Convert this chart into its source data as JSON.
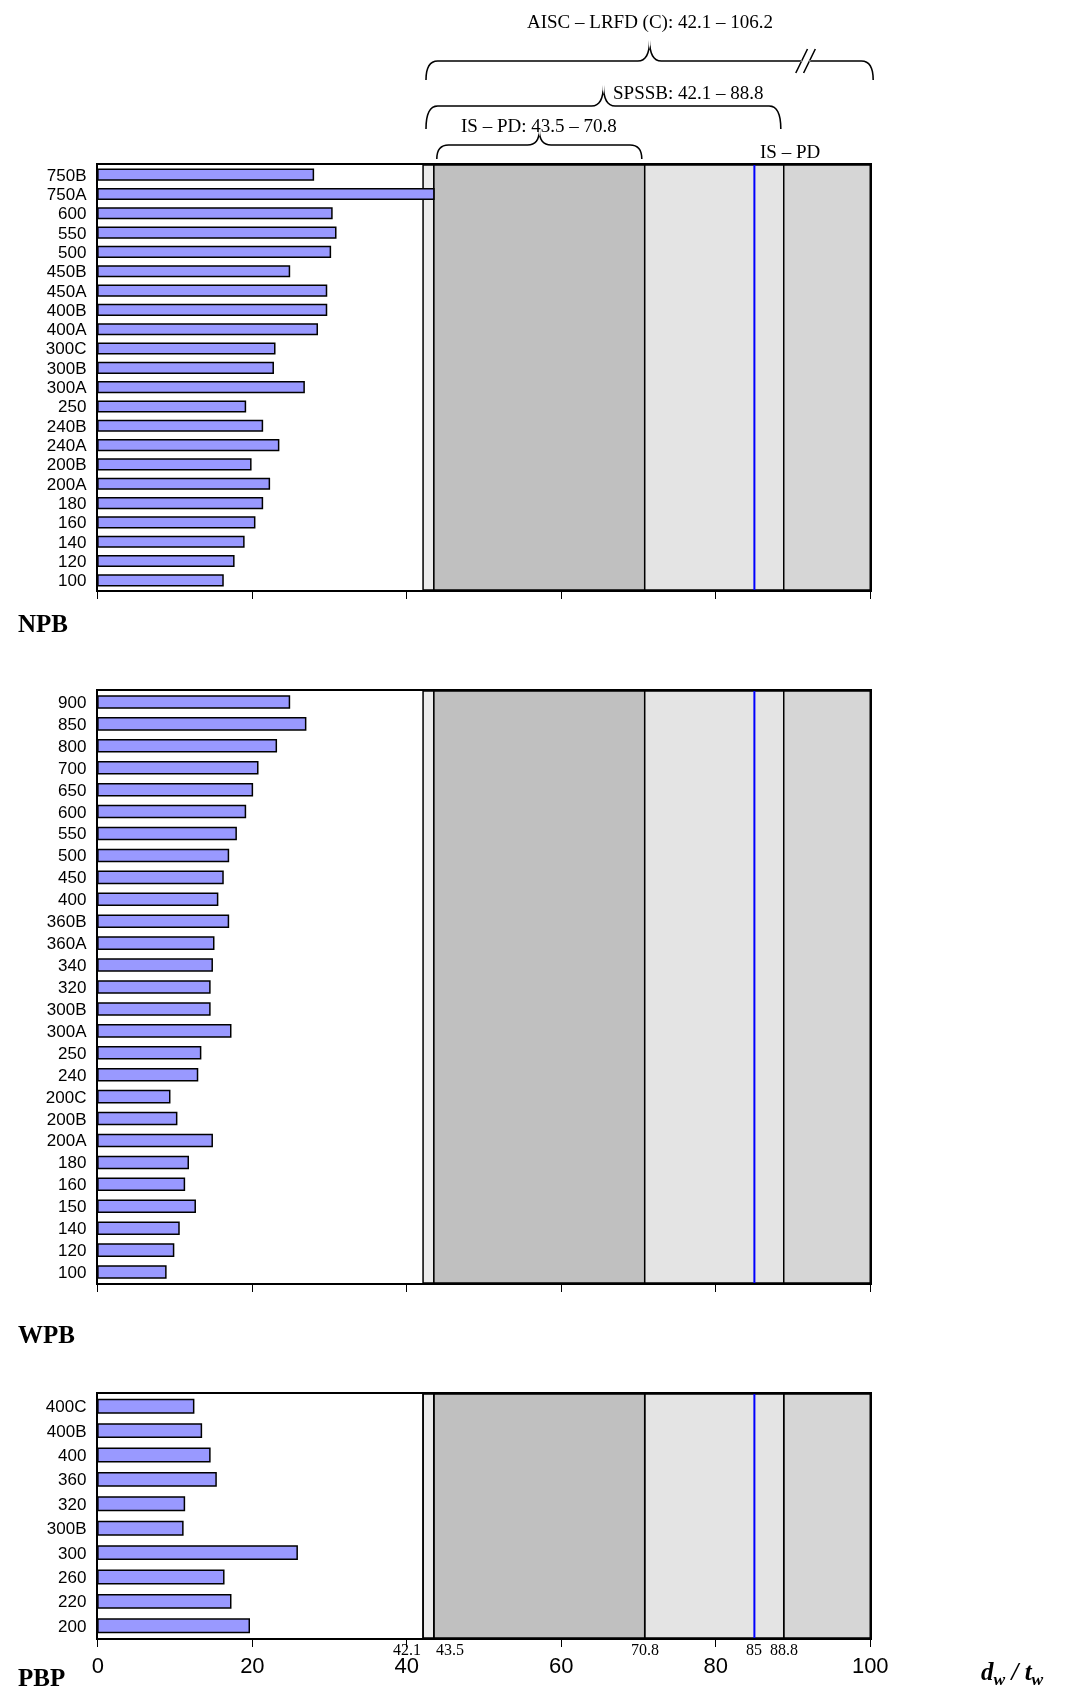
{
  "chart_data": [
    {
      "type": "bar",
      "orientation": "horizontal",
      "title": "NPB",
      "color": "#9999ff",
      "categories": [
        "750B",
        "750A",
        "600",
        "550",
        "500",
        "450B",
        "450A",
        "400B",
        "400A",
        "300C",
        "300B",
        "300A",
        "250",
        "240B",
        "240A",
        "200B",
        "200A",
        "180",
        "160",
        "140",
        "120",
        "100"
      ],
      "values": [
        27.9,
        43.5,
        30.3,
        30.8,
        30.1,
        24.8,
        29.6,
        29.6,
        28.4,
        22.9,
        22.7,
        26.7,
        19.1,
        21.3,
        23.4,
        19.8,
        22.2,
        21.3,
        20.3,
        18.9,
        17.6,
        16.2
      ],
      "xlim": [
        0,
        100
      ],
      "xticks": [
        0,
        20,
        40,
        60,
        80,
        100
      ],
      "tick_labels": "y",
      "bands": [
        {
          "axis": "x",
          "from": 42.1,
          "to": 43.5,
          "color": "#ececec"
        },
        {
          "axis": "x",
          "from": 43.5,
          "to": 70.8,
          "color": "#c0c0c0"
        },
        {
          "axis": "x",
          "from": 70.8,
          "to": 88.8,
          "color": "#e4e4e4"
        },
        {
          "axis": "x",
          "from": 88.8,
          "to": 100,
          "color": "#d6d6d6"
        }
      ],
      "ref_lines": [
        {
          "axis": "x",
          "value": 85,
          "label": "IS – PD",
          "color": "#0000ff"
        }
      ],
      "annotations": [
        "AISC – LRFD (C): 42.1 – 106.2",
        "SPSSB: 42.1 – 88.8",
        "IS – PD: 43.5 – 70.8"
      ]
    },
    {
      "type": "bar",
      "orientation": "horizontal",
      "title": "WPB",
      "color": "#9999ff",
      "categories": [
        "900",
        "850",
        "800",
        "700",
        "650",
        "600",
        "550",
        "500",
        "450",
        "400",
        "360B",
        "360A",
        "340",
        "320",
        "300B",
        "300A",
        "250",
        "240",
        "200C",
        "200B",
        "200A",
        "180",
        "160",
        "150",
        "140",
        "120",
        "100"
      ],
      "values": [
        24.8,
        26.9,
        23.1,
        20.7,
        20.0,
        19.1,
        17.9,
        16.9,
        16.2,
        15.5,
        16.9,
        15.0,
        14.8,
        14.5,
        14.5,
        17.2,
        13.3,
        12.9,
        9.3,
        10.2,
        14.8,
        11.7,
        11.2,
        12.6,
        10.5,
        9.8,
        8.8
      ],
      "xlim": [
        0,
        100
      ],
      "xticks": [
        0,
        20,
        40,
        60,
        80,
        100
      ],
      "tick_labels": "y",
      "bands": [
        {
          "axis": "x",
          "from": 42.1,
          "to": 43.5,
          "color": "#ececec"
        },
        {
          "axis": "x",
          "from": 43.5,
          "to": 70.8,
          "color": "#c0c0c0"
        },
        {
          "axis": "x",
          "from": 70.8,
          "to": 88.8,
          "color": "#e4e4e4"
        },
        {
          "axis": "x",
          "from": 88.8,
          "to": 100,
          "color": "#d6d6d6"
        }
      ],
      "ref_lines": [
        {
          "axis": "x",
          "value": 85,
          "color": "#0000ff"
        }
      ]
    },
    {
      "type": "bar",
      "orientation": "horizontal",
      "title": "PBP",
      "color": "#9999ff",
      "xlabel": "d$_{w}$ / t$_{w}$",
      "categories": [
        "400C",
        "400B",
        "400",
        "360",
        "320",
        "300B",
        "300",
        "260",
        "220",
        "200"
      ],
      "values": [
        12.4,
        13.4,
        14.5,
        15.3,
        11.2,
        11.0,
        25.8,
        16.3,
        17.2,
        19.6
      ],
      "xlim": [
        0,
        100
      ],
      "xticks": [
        0,
        20,
        40,
        60,
        80,
        100
      ],
      "bands": [
        {
          "axis": "x",
          "from": 42.1,
          "to": 43.5,
          "color": "#ececec"
        },
        {
          "axis": "x",
          "from": 43.5,
          "to": 70.8,
          "color": "#c0c0c0"
        },
        {
          "axis": "x",
          "from": 70.8,
          "to": 88.8,
          "color": "#e4e4e4"
        },
        {
          "axis": "x",
          "from": 88.8,
          "to": 100,
          "color": "#d6d6d6"
        }
      ],
      "ref_lines": [
        {
          "axis": "x",
          "value": 42.1,
          "label": "42.1",
          "color": "#000000"
        },
        {
          "axis": "x",
          "value": 43.5,
          "label": "43.5",
          "color": "#000000"
        },
        {
          "axis": "x",
          "value": 70.8,
          "label": "70.8",
          "color": "#000000"
        },
        {
          "axis": "x",
          "value": 85,
          "label": "85",
          "color": "#0000ff"
        },
        {
          "axis": "x",
          "value": 88.8,
          "label": "88.8",
          "color": "#000000"
        }
      ]
    }
  ]
}
